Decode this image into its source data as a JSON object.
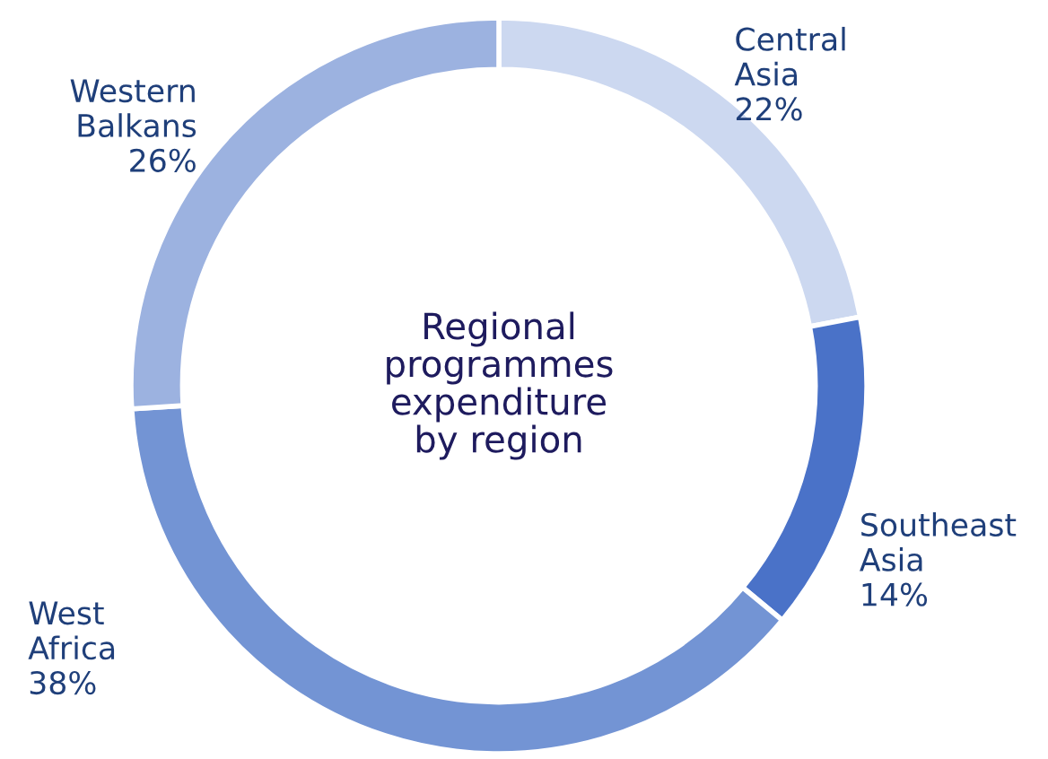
{
  "chart_data": {
    "type": "donut",
    "title": "Regional programmes expenditure by region",
    "categories": [
      "Central Asia",
      "Southeast Asia",
      "West Africa",
      "Western Balkans"
    ],
    "values": [
      22,
      14,
      38,
      26
    ],
    "value_labels": [
      "22%",
      "14%",
      "38%",
      "26%"
    ],
    "colors": [
      "#ccd8f0",
      "#4a72c8",
      "#7394d4",
      "#9cb2e0"
    ],
    "legend": false
  }
}
